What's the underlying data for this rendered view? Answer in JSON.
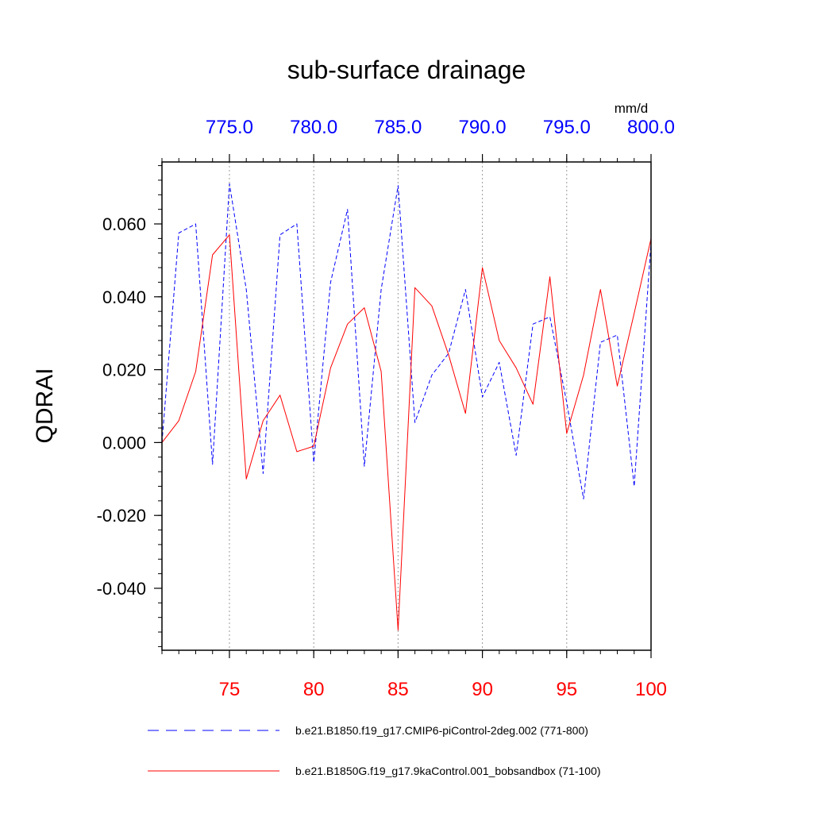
{
  "chart_data": {
    "type": "line",
    "title": "sub-surface drainage",
    "ylabel": "QDRAI",
    "units_label": "mm/d",
    "xlim_bottom": [
      71,
      100
    ],
    "xlim_top": [
      771,
      800
    ],
    "ylim": [
      -0.057,
      0.077
    ],
    "bottom_ticks": [
      75,
      80,
      85,
      90,
      95,
      100
    ],
    "bottom_tick_labels": [
      "75",
      "80",
      "85",
      "90",
      "95",
      "100"
    ],
    "top_ticks": [
      775,
      780,
      785,
      790,
      795,
      800
    ],
    "top_tick_labels": [
      "775.0",
      "780.0",
      "785.0",
      "790.0",
      "795.0",
      "800.0"
    ],
    "y_ticks": [
      0.06,
      0.04,
      0.02,
      0.0,
      -0.02,
      -0.04
    ],
    "y_tick_labels": [
      "0.060",
      "0.040",
      "0.020",
      "0.000",
      "-0.020",
      "-0.040"
    ],
    "y_minor_step": 0.004,
    "x_minor_step": 1,
    "vertical_gridlines_at": [
      75,
      80,
      85,
      90,
      95
    ],
    "series": [
      {
        "name": "b.e21.B1850.f19_g17.CMIP6-piControl-2deg.002 (771-800)",
        "axis": "top",
        "color": "#0000ff",
        "style": "dashed",
        "x": [
          771,
          772,
          773,
          774,
          775,
          776,
          777,
          778,
          779,
          780,
          781,
          782,
          783,
          784,
          785,
          786,
          787,
          788,
          789,
          790,
          791,
          792,
          793,
          794,
          795,
          796,
          797,
          798,
          799,
          800
        ],
        "values": [
          0.0,
          0.0575,
          0.06,
          -0.006,
          0.071,
          0.042,
          -0.0085,
          0.057,
          0.06,
          -0.0055,
          0.044,
          0.064,
          -0.0065,
          0.042,
          0.0705,
          0.0055,
          0.0185,
          0.0245,
          0.042,
          0.0125,
          0.022,
          -0.0035,
          0.0325,
          0.0345,
          0.011,
          -0.0155,
          0.0275,
          0.0295,
          -0.012,
          0.055
        ]
      },
      {
        "name": "b.e21.B1850G.f19_g17.9kaControl.001_bobsandbox (71-100)",
        "axis": "bottom",
        "color": "#ff0000",
        "style": "solid",
        "x": [
          71,
          72,
          73,
          74,
          75,
          76,
          77,
          78,
          79,
          80,
          81,
          82,
          83,
          84,
          85,
          86,
          87,
          88,
          89,
          90,
          91,
          92,
          93,
          94,
          95,
          96,
          97,
          98,
          99,
          100
        ],
        "values": [
          0.0,
          0.006,
          0.0195,
          0.0515,
          0.057,
          -0.01,
          0.006,
          0.013,
          -0.0025,
          -0.001,
          0.0205,
          0.0325,
          0.037,
          0.0195,
          -0.0515,
          0.0425,
          0.0375,
          0.024,
          0.008,
          0.048,
          0.028,
          0.0205,
          0.0105,
          0.0455,
          0.0025,
          0.0185,
          0.042,
          0.0155,
          0.0355,
          0.056
        ]
      }
    ]
  }
}
